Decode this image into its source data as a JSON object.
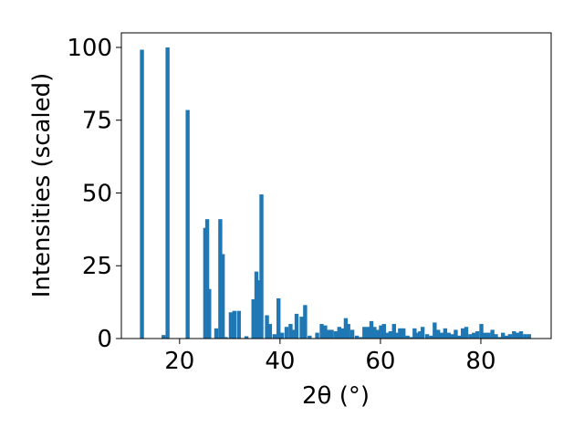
{
  "chart_data": {
    "type": "bar",
    "title": "",
    "xlabel": "2θ (°)",
    "ylabel": "Intensities (scaled)",
    "xlim": [
      8.4,
      94.0
    ],
    "ylim": [
      0,
      105
    ],
    "xticks": [
      20,
      40,
      60,
      80
    ],
    "yticks": [
      0,
      25,
      50,
      75,
      100
    ],
    "bar_width": 0.8,
    "bar_color": "#1f77b4",
    "grid": false,
    "x": [
      12.5,
      16.8,
      17.6,
      21.6,
      25.1,
      25.5,
      25.9,
      27.3,
      28.1,
      28.6,
      29.2,
      30.2,
      30.9,
      31.8,
      33.3,
      34.7,
      35.3,
      35.8,
      36.3,
      37.4,
      38.0,
      38.9,
      39.7,
      40.4,
      41.3,
      42.1,
      42.6,
      43.3,
      44.3,
      45.0,
      45.9,
      47.4,
      48.3,
      49.0,
      49.6,
      50.3,
      51.1,
      51.8,
      52.6,
      53.1,
      53.6,
      54.4,
      55.3,
      56.1,
      56.8,
      57.6,
      58.2,
      58.8,
      59.4,
      60.1,
      60.7,
      61.3,
      62.0,
      62.7,
      63.3,
      63.9,
      64.6,
      65.4,
      66.2,
      66.8,
      67.4,
      67.9,
      68.4,
      69.3,
      70.1,
      70.8,
      71.5,
      72.2,
      72.9,
      73.6,
      74.3,
      75.0,
      75.7,
      76.4,
      77.1,
      77.9,
      78.6,
      79.3,
      80.1,
      80.8,
      81.5,
      82.3,
      83.0,
      83.7,
      84.4,
      85.1,
      85.8,
      86.6,
      87.3,
      88.0,
      88.8,
      89.6
    ],
    "values": [
      99.2,
      1.2,
      100.0,
      78.5,
      38.0,
      41.0,
      17.0,
      3.5,
      41.0,
      29.0,
      0.5,
      9.0,
      9.5,
      9.5,
      0.8,
      13.5,
      23.0,
      20.0,
      49.5,
      8.0,
      5.0,
      1.5,
      13.8,
      2.0,
      4.0,
      5.0,
      3.0,
      8.5,
      7.5,
      11.5,
      1.0,
      2.0,
      5.0,
      4.5,
      3.0,
      3.0,
      2.5,
      4.0,
      3.5,
      7.0,
      5.0,
      3.0,
      1.0,
      0.5,
      4.0,
      4.0,
      6.0,
      4.0,
      3.0,
      4.5,
      5.0,
      2.0,
      2.5,
      5.0,
      2.0,
      3.5,
      3.5,
      1.0,
      0.5,
      3.5,
      2.0,
      2.5,
      4.0,
      1.5,
      1.0,
      5.5,
      3.0,
      2.0,
      3.5,
      2.0,
      1.5,
      3.0,
      1.0,
      3.5,
      4.0,
      1.5,
      2.0,
      2.5,
      5.0,
      2.0,
      2.0,
      3.0,
      1.5,
      0.5,
      2.0,
      1.0,
      1.5,
      2.5,
      2.0,
      2.5,
      1.5,
      1.5
    ]
  }
}
